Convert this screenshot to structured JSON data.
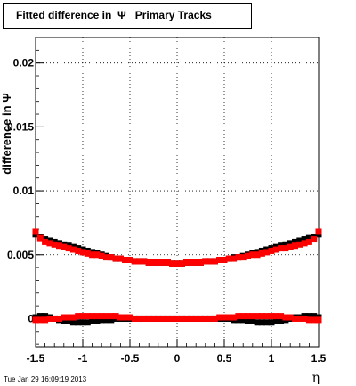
{
  "title": "Fitted difference in  Ψ   Primary Tracks",
  "timestamp": "Tue Jan 29 16:09:19 2013",
  "chart_data": {
    "type": "scatter",
    "title": "Fitted difference in  Ψ   Primary Tracks",
    "xlabel": "η",
    "ylabel": "difference in Ψ",
    "xlim": [
      -1.5,
      1.5
    ],
    "ylim": [
      -0.0022,
      0.022
    ],
    "grid": true,
    "xticks": [
      -1.5,
      -1,
      -0.5,
      0,
      0.5,
      1,
      1.5
    ],
    "xtick_labels": [
      "-1.5",
      "-1",
      "-0.5",
      "0",
      "0.5",
      "1",
      "1.5"
    ],
    "yticks": [
      0,
      0.005,
      0.01,
      0.015,
      0.02
    ],
    "ytick_labels": [
      "0",
      "0.005",
      "0.01",
      "0.015",
      "0.02"
    ],
    "series": [
      {
        "color": "#000000",
        "x": [
          -1.5,
          -1.45,
          -1.4,
          -1.35,
          -1.3,
          -1.25,
          -1.2,
          -1.15,
          -1.1,
          -1.05,
          -1,
          -0.95,
          -0.9,
          -0.85,
          -0.8,
          -0.75,
          -0.7,
          -0.65,
          -0.6,
          -0.55,
          -0.5,
          -0.45,
          -0.4,
          -0.35,
          -0.3,
          -0.25,
          -0.2,
          -0.15,
          -0.1,
          -0.05,
          0,
          0.05,
          0.1,
          0.15,
          0.2,
          0.25,
          0.3,
          0.35,
          0.4,
          0.45,
          0.5,
          0.55,
          0.6,
          0.65,
          0.7,
          0.75,
          0.8,
          0.85,
          0.9,
          0.95,
          1,
          1.05,
          1.1,
          1.15,
          1.2,
          1.25,
          1.3,
          1.35,
          1.4,
          1.45,
          1.5
        ],
        "y": [
          0.0066,
          0.0064,
          0.0062,
          0.0061,
          0.006,
          0.0059,
          0.0058,
          0.0057,
          0.0056,
          0.0055,
          0.0054,
          0.0053,
          0.0052,
          0.0051,
          0.005,
          0.0049,
          0.0048,
          0.0047,
          0.0047,
          0.0046,
          0.0046,
          0.0045,
          0.0045,
          0.0045,
          0.0044,
          0.0044,
          0.0044,
          0.0044,
          0.0044,
          0.0043,
          0.0043,
          0.0043,
          0.0044,
          0.0044,
          0.0044,
          0.0044,
          0.0045,
          0.0045,
          0.0045,
          0.0046,
          0.0046,
          0.0047,
          0.0048,
          0.0048,
          0.0049,
          0.005,
          0.0051,
          0.0052,
          0.0053,
          0.0054,
          0.0055,
          0.0056,
          0.0057,
          0.0058,
          0.0059,
          0.006,
          0.0061,
          0.0062,
          0.0063,
          0.0064,
          0.0066
        ]
      },
      {
        "color": "#ff0000",
        "x": [
          -1.5,
          -1.45,
          -1.4,
          -1.35,
          -1.3,
          -1.25,
          -1.2,
          -1.15,
          -1.1,
          -1.05,
          -1,
          -0.95,
          -0.9,
          -0.85,
          -0.8,
          -0.75,
          -0.7,
          -0.65,
          -0.6,
          -0.55,
          -0.5,
          -0.45,
          -0.4,
          -0.35,
          -0.3,
          -0.25,
          -0.2,
          -0.15,
          -0.1,
          -0.05,
          0,
          0.05,
          0.1,
          0.15,
          0.2,
          0.25,
          0.3,
          0.35,
          0.4,
          0.45,
          0.5,
          0.55,
          0.6,
          0.65,
          0.7,
          0.75,
          0.8,
          0.85,
          0.9,
          0.95,
          1,
          1.05,
          1.1,
          1.15,
          1.2,
          1.25,
          1.3,
          1.35,
          1.4,
          1.45,
          1.5
        ],
        "y": [
          0.0068,
          0.0063,
          0.006,
          0.0059,
          0.0058,
          0.0057,
          0.0056,
          0.0055,
          0.0054,
          0.0053,
          0.0052,
          0.0051,
          0.005,
          0.005,
          0.0049,
          0.0048,
          0.0048,
          0.0047,
          0.0047,
          0.0046,
          0.0046,
          0.0045,
          0.0045,
          0.0045,
          0.0044,
          0.0044,
          0.0044,
          0.0044,
          0.0044,
          0.0043,
          0.0043,
          0.0043,
          0.0044,
          0.0044,
          0.0044,
          0.0044,
          0.0045,
          0.0045,
          0.0045,
          0.0046,
          0.0046,
          0.0047,
          0.0047,
          0.0048,
          0.0048,
          0.0049,
          0.005,
          0.005,
          0.0051,
          0.0052,
          0.0053,
          0.0054,
          0.0055,
          0.0055,
          0.0056,
          0.0057,
          0.0058,
          0.0059,
          0.006,
          0.0062,
          0.0068
        ]
      },
      {
        "color": "#000000",
        "x": [
          -1.5,
          -1.45,
          -1.4,
          -1.35,
          -1.3,
          -1.25,
          -1.2,
          -1.15,
          -1.1,
          -1.05,
          -1,
          -0.95,
          -0.9,
          -0.85,
          -0.8,
          -0.75,
          -0.7,
          -0.65,
          -0.6,
          -0.55,
          -0.5,
          -0.45,
          -0.4,
          -0.35,
          -0.3,
          -0.25,
          -0.2,
          -0.15,
          -0.1,
          -0.05,
          0,
          0.05,
          0.1,
          0.15,
          0.2,
          0.25,
          0.3,
          0.35,
          0.4,
          0.45,
          0.5,
          0.55,
          0.6,
          0.65,
          0.7,
          0.75,
          0.8,
          0.85,
          0.9,
          0.95,
          1,
          1.05,
          1.1,
          1.15,
          1.2,
          1.25,
          1.3,
          1.35,
          1.4,
          1.45,
          1.5
        ],
        "y": [
          0.0001,
          0.0002,
          0.0002,
          0.0001,
          0.0,
          -0.0001,
          -0.0002,
          -0.0002,
          -0.0003,
          -0.0003,
          -0.0003,
          -0.0003,
          -0.0002,
          -0.0002,
          -0.0001,
          -0.0001,
          -0.0001,
          0.0,
          0.0,
          0.0,
          0.0,
          0.0,
          0.0,
          0.0,
          0.0,
          0.0,
          0.0,
          0.0,
          0.0,
          0.0,
          0.0,
          0.0,
          0.0,
          0.0,
          0.0,
          0.0,
          0.0,
          0.0,
          0.0,
          0.0,
          0.0,
          0.0,
          -0.0001,
          -0.0001,
          -0.0001,
          -0.0002,
          -0.0002,
          -0.0003,
          -0.0003,
          -0.0003,
          -0.0003,
          -0.0002,
          -0.0002,
          -0.0001,
          0.0,
          0.0001,
          0.0001,
          0.0002,
          0.0002,
          0.0002,
          0.0001
        ]
      },
      {
        "color": "#ff0000",
        "x": [
          -1.5,
          -1.45,
          -1.4,
          -1.35,
          -1.3,
          -1.25,
          -1.2,
          -1.15,
          -1.1,
          -1.05,
          -1,
          -0.95,
          -0.9,
          -0.85,
          -0.8,
          -0.75,
          -0.7,
          -0.65,
          -0.6,
          -0.55,
          -0.5,
          -0.45,
          -0.4,
          -0.35,
          -0.3,
          -0.25,
          -0.2,
          -0.15,
          -0.1,
          -0.05,
          0,
          0.05,
          0.1,
          0.15,
          0.2,
          0.25,
          0.3,
          0.35,
          0.4,
          0.45,
          0.5,
          0.55,
          0.6,
          0.65,
          0.7,
          0.75,
          0.8,
          0.85,
          0.9,
          0.95,
          1,
          1.05,
          1.1,
          1.15,
          1.2,
          1.25,
          1.3,
          1.35,
          1.4,
          1.45,
          1.5
        ],
        "y": [
          -0.0001,
          -0.0001,
          -0.0001,
          0.0,
          0.0,
          0.0,
          0.0001,
          0.0001,
          0.0001,
          0.0002,
          0.0002,
          0.0002,
          0.0002,
          0.0002,
          0.0002,
          0.0002,
          0.0002,
          0.0002,
          0.0001,
          0.0001,
          0.0001,
          0.0,
          0.0,
          0.0,
          0.0,
          0.0,
          0.0,
          0.0,
          0.0,
          0.0,
          0.0,
          0.0,
          0.0,
          0.0,
          0.0,
          0.0,
          0.0,
          0.0,
          0.0,
          0.0001,
          0.0001,
          0.0001,
          0.0001,
          0.0002,
          0.0002,
          0.0002,
          0.0002,
          0.0002,
          0.0002,
          0.0002,
          0.0002,
          0.0002,
          0.0002,
          0.0001,
          0.0001,
          0.0,
          0.0,
          0.0,
          -0.0001,
          -0.0001,
          -0.0001
        ]
      }
    ]
  }
}
